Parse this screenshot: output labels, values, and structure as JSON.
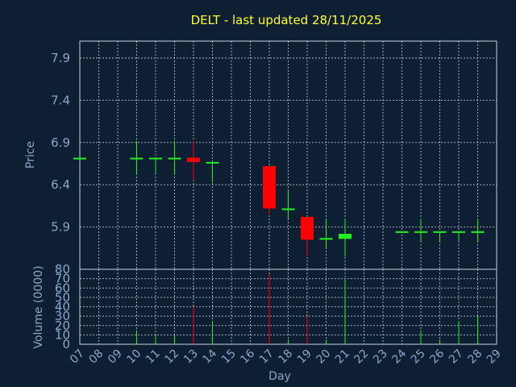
{
  "chart_data": {
    "type": "candlestick",
    "title": "DELT - last updated 28/11/2025",
    "xlabel": "Day",
    "price_panel": {
      "ylabel": "Price",
      "ylim": [
        5.4,
        8.1
      ],
      "yticks": [
        "5.9",
        "6.4",
        "6.9",
        "7.4",
        "7.9"
      ],
      "grid": true
    },
    "volume_panel": {
      "ylabel": "Volume (0000)",
      "ylim": [
        0,
        80
      ],
      "yticks": [
        "0",
        "10",
        "20",
        "30",
        "40",
        "50",
        "60",
        "70",
        "80"
      ],
      "grid": true
    },
    "x_ticks": [
      "07",
      "08",
      "09",
      "10",
      "11",
      "12",
      "13",
      "14",
      "15",
      "16",
      "17",
      "18",
      "19",
      "20",
      "21",
      "22",
      "23",
      "24",
      "25",
      "26",
      "27",
      "28",
      "29"
    ],
    "candles": [
      {
        "day": 7,
        "open": 6.72,
        "high": 6.72,
        "low": 6.72,
        "close": 6.72,
        "volume": 0
      },
      {
        "day": 10,
        "open": 6.72,
        "high": 6.92,
        "low": 6.53,
        "close": 6.72,
        "volume": 15
      },
      {
        "day": 11,
        "open": 6.72,
        "high": 6.72,
        "low": 6.53,
        "close": 6.72,
        "volume": 10
      },
      {
        "day": 12,
        "open": 6.72,
        "high": 6.92,
        "low": 6.53,
        "close": 6.72,
        "volume": 10
      },
      {
        "day": 13,
        "open": 6.72,
        "high": 6.92,
        "low": 6.45,
        "close": 6.67,
        "volume": 40
      },
      {
        "day": 14,
        "open": 6.67,
        "high": 6.67,
        "low": 6.43,
        "close": 6.67,
        "volume": 25
      },
      {
        "day": 17,
        "open": 6.62,
        "high": 6.62,
        "low": 6.05,
        "close": 6.12,
        "volume": 75
      },
      {
        "day": 18,
        "open": 6.12,
        "high": 6.33,
        "low": 6.0,
        "close": 6.12,
        "volume": 5
      },
      {
        "day": 19,
        "open": 6.02,
        "high": 6.02,
        "low": 5.55,
        "close": 5.75,
        "volume": 30
      },
      {
        "day": 20,
        "open": 5.75,
        "high": 6.0,
        "low": 5.65,
        "close": 5.77,
        "volume": 5
      },
      {
        "day": 21,
        "open": 5.76,
        "high": 6.0,
        "low": 5.55,
        "close": 5.82,
        "volume": 70
      },
      {
        "day": 24,
        "open": 5.85,
        "high": 5.85,
        "low": 5.85,
        "close": 5.85,
        "volume": 0
      },
      {
        "day": 25,
        "open": 5.85,
        "high": 6.0,
        "low": 5.72,
        "close": 5.85,
        "volume": 15
      },
      {
        "day": 26,
        "open": 5.85,
        "high": 5.85,
        "low": 5.72,
        "close": 5.85,
        "volume": 5
      },
      {
        "day": 27,
        "open": 5.85,
        "high": 5.85,
        "low": 5.72,
        "close": 5.85,
        "volume": 25
      },
      {
        "day": 28,
        "open": 5.85,
        "high": 6.0,
        "low": 5.72,
        "close": 5.85,
        "volume": 30
      }
    ],
    "colors": {
      "up": "#22ee22",
      "down": "#ff0000",
      "background": "#0f1f33",
      "title": "#ffff33",
      "axis_text": "#8aa6c8",
      "grid": "#c8d0e0"
    }
  }
}
